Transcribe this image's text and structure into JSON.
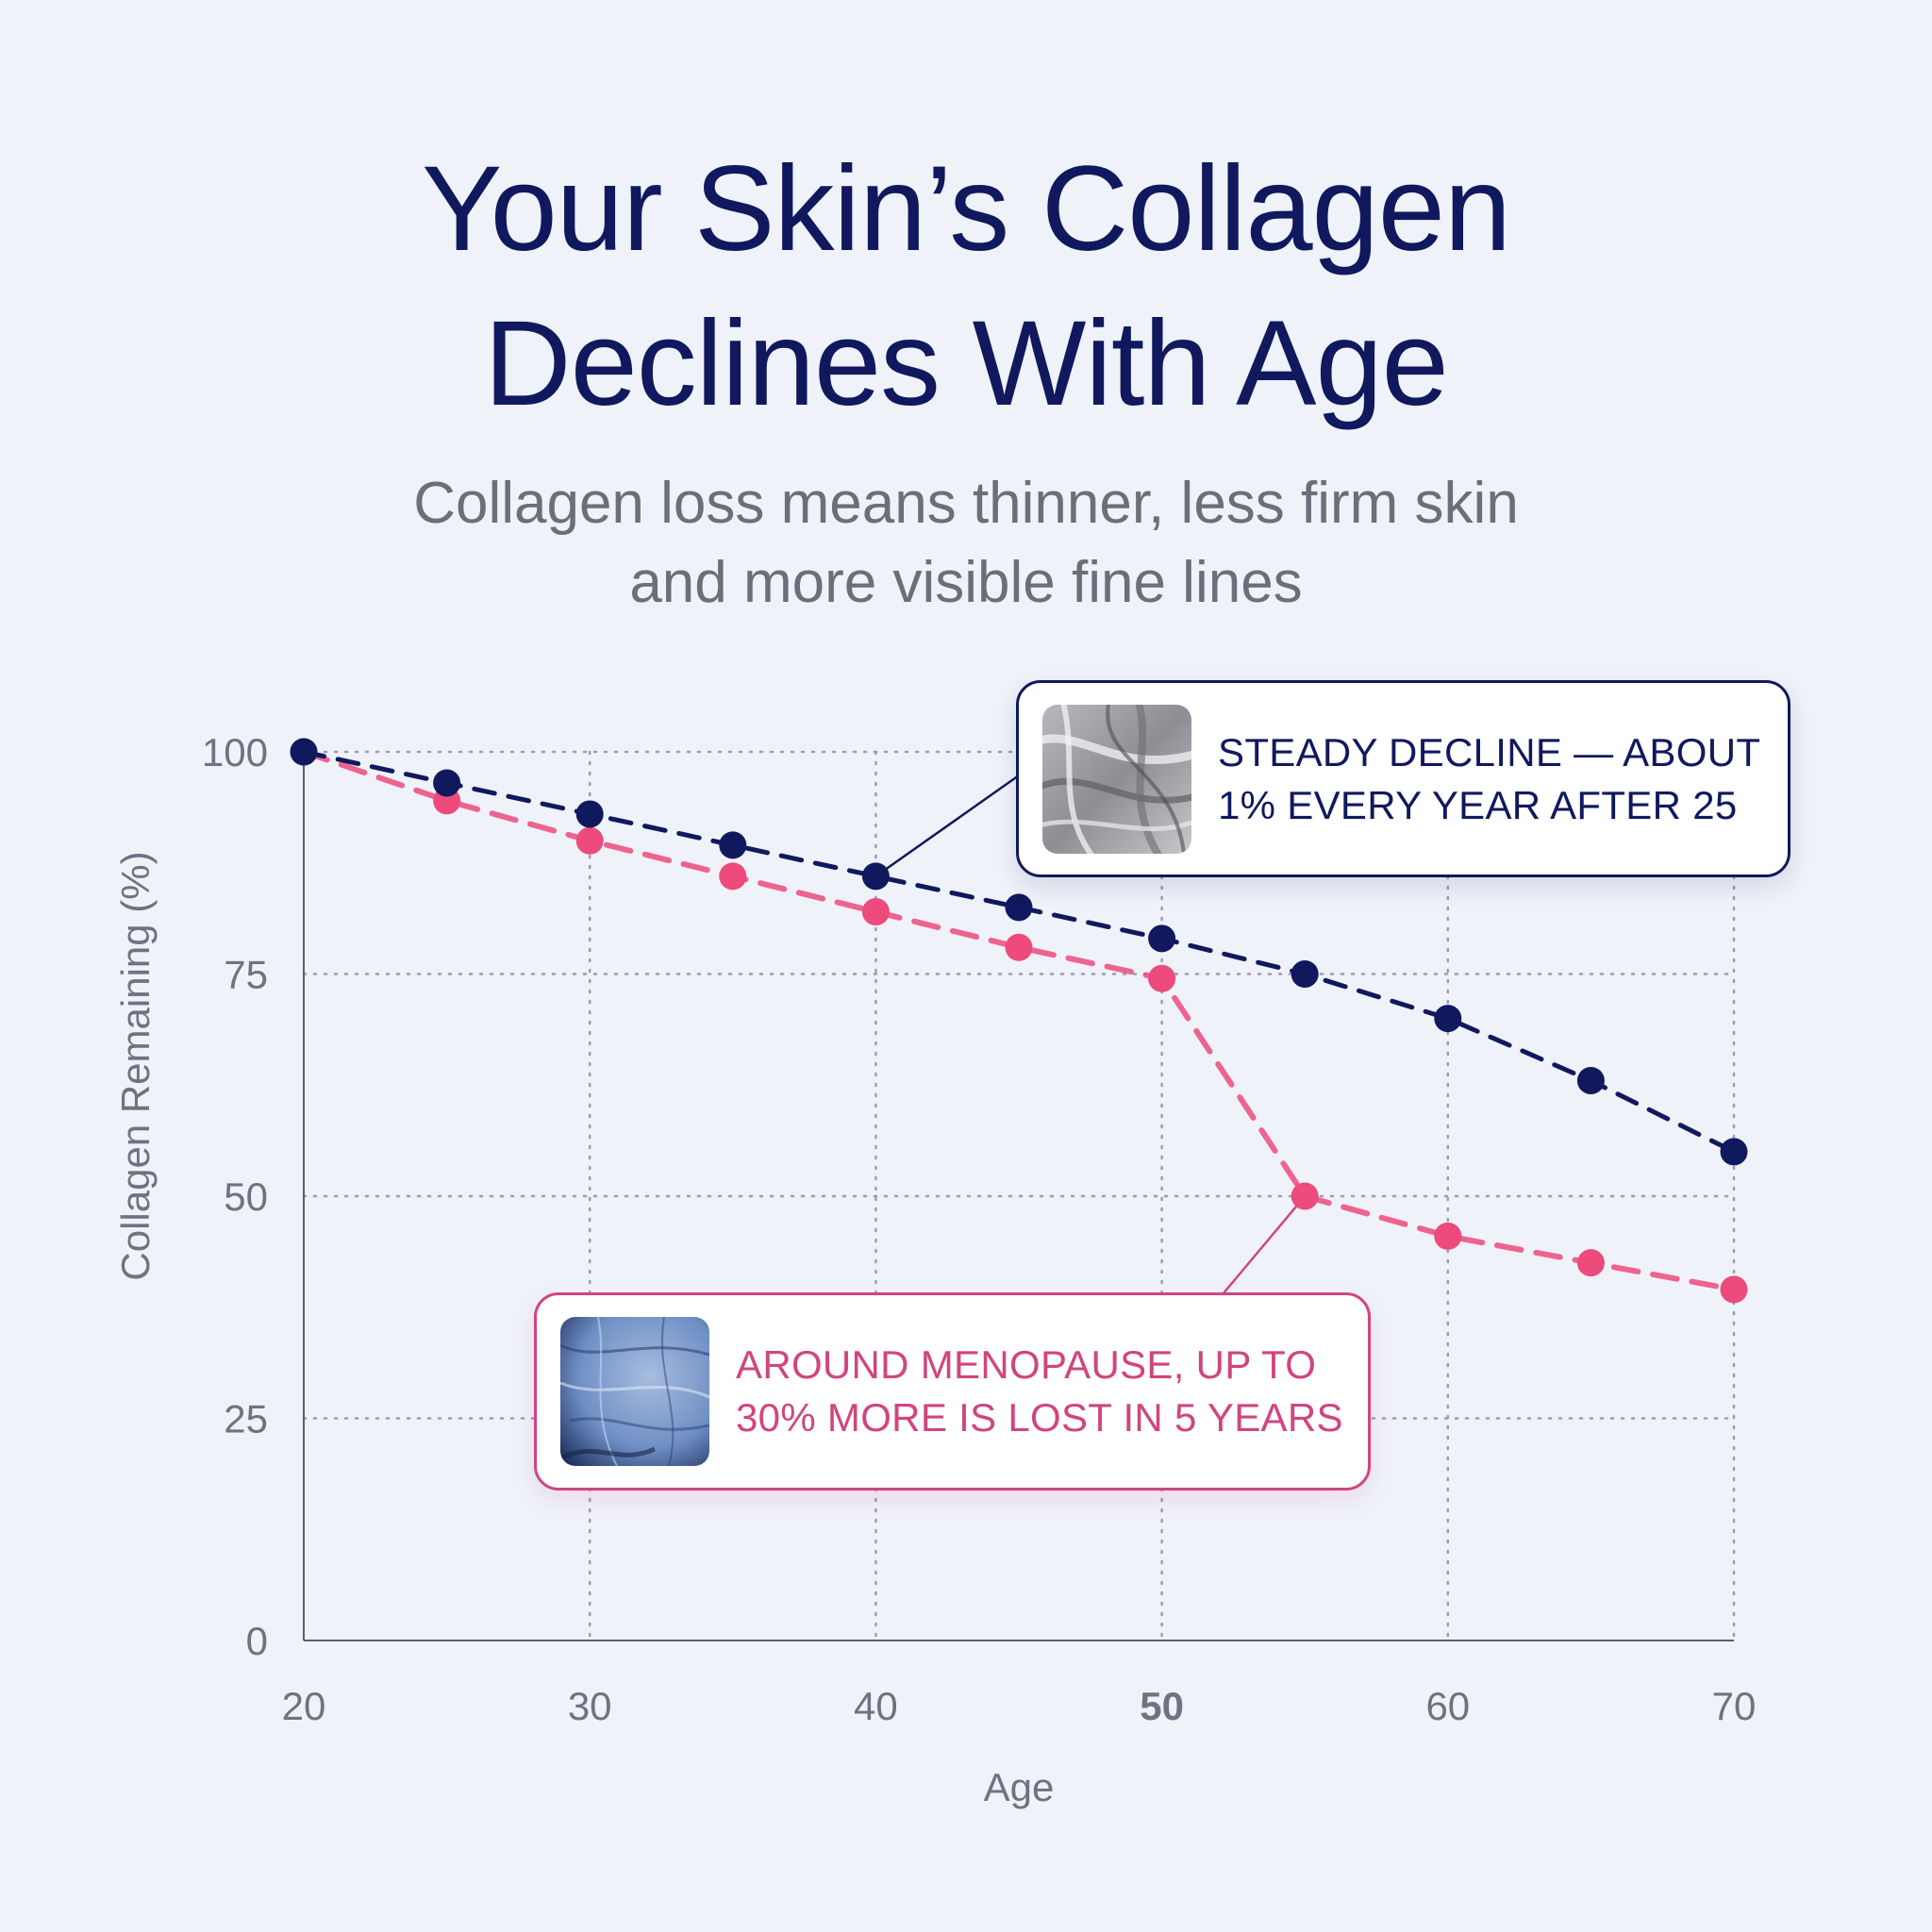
{
  "title": "Your Skin’s Collagen\nDeclines With Age",
  "subtitle": "Collagen loss means thinner, less firm skin\nand more visible fine lines",
  "colors": {
    "navy": "#10195e",
    "pink": "#ec4b7c",
    "pink_text": "#d04580",
    "grid": "#9a9db0",
    "axis_text": "#6f7282"
  },
  "chart_data": {
    "type": "line",
    "title": "Your Skin’s Collagen Declines With Age",
    "subtitle": "Collagen loss means thinner, less firm skin and more visible fine lines",
    "xlabel": "Age",
    "ylabel": "Collagen Remaining (%)",
    "xlim": [
      20,
      70
    ],
    "ylim": [
      0,
      100
    ],
    "x_ticks": [
      20,
      30,
      40,
      50,
      60,
      70
    ],
    "y_ticks": [
      0,
      25,
      50,
      75,
      100
    ],
    "highlighted_x_tick": 50,
    "grid": "dotted",
    "x": [
      20,
      25,
      30,
      35,
      40,
      45,
      50,
      55,
      60,
      65,
      70
    ],
    "series": [
      {
        "values": [
          100,
          96.5,
          93,
          89.5,
          86,
          82.5,
          79,
          75,
          70,
          63,
          55
        ],
        "style": "dashed",
        "color": "#10195e"
      },
      {
        "values": [
          100,
          94.5,
          90,
          86,
          82,
          78,
          74.5,
          50,
          45.5,
          42.5,
          39.5
        ],
        "style": "dashed",
        "color": "#ec4b7c"
      }
    ],
    "annotations": [
      {
        "text": "STEADY DECLINE — ABOUT\n1% EVERY YEAR AFTER 25",
        "points_to": {
          "x": 40,
          "y": 86
        },
        "icon": "collagen-fiber-thumbnail",
        "color": "#10195e"
      },
      {
        "text": "AROUND MENOPAUSE, UP TO\n30% MORE IS LOST IN 5 YEARS",
        "points_to": {
          "x": 55,
          "y": 50
        },
        "icon": "skin-texture-thumbnail",
        "color": "#d04580"
      }
    ]
  }
}
